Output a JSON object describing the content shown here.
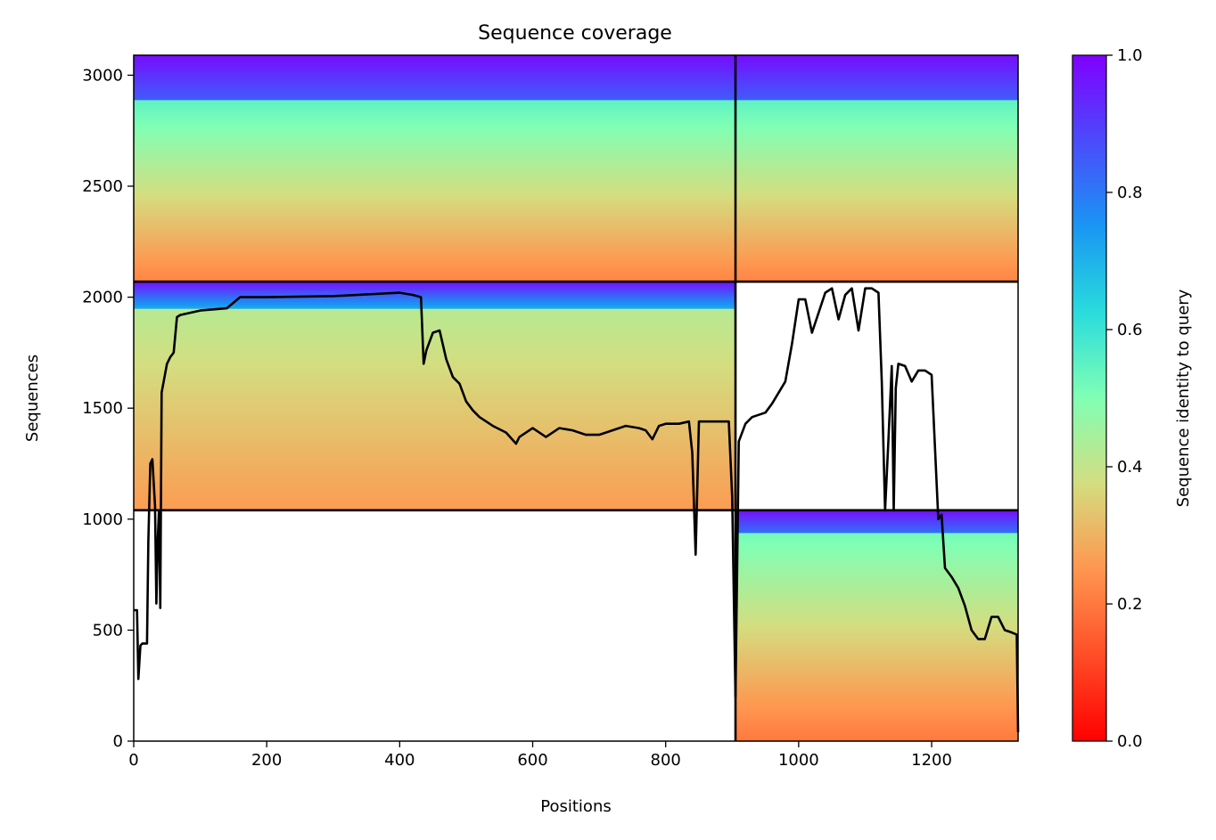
{
  "chart_data": {
    "type": "heatmap",
    "title": "Sequence coverage",
    "xlabel": "Positions",
    "ylabel": "Sequences",
    "xlim": [
      0,
      1330
    ],
    "ylim": [
      0,
      3090
    ],
    "xticks": [
      0,
      200,
      400,
      600,
      800,
      1000,
      1200
    ],
    "yticks": [
      0,
      500,
      1000,
      1500,
      2000,
      2500,
      3000
    ],
    "colorbar": {
      "label": "Sequence identity to query",
      "colormap": "rainbow",
      "range": [
        0.0,
        1.0
      ],
      "ticks": [
        "0.0",
        "0.2",
        "0.4",
        "0.6",
        "0.8",
        "1.0"
      ]
    },
    "segment_boundaries_x": [
      905
    ],
    "block_boundaries_y": [
      1040,
      2070
    ],
    "blocks": [
      {
        "rows": [
          0,
          1040
        ],
        "x_extent": [
          905,
          1330
        ],
        "identity_bottom": 0.2,
        "identity_top": 0.98,
        "band_switch_row": 940,
        "high_identity": 0.82
      },
      {
        "rows": [
          1040,
          2070
        ],
        "x_extent": [
          0,
          905
        ],
        "identity_bottom": 0.26,
        "identity_top": 0.98,
        "band_switch_row": 1950,
        "high_identity": 0.72
      },
      {
        "rows": [
          2070,
          3090
        ],
        "x_extent": [
          0,
          1330
        ],
        "identity_bottom": 0.22,
        "identity_top": 0.98,
        "band_switch_row": 2890,
        "high_identity": 0.85
      }
    ],
    "coverage_line": {
      "x": [
        0,
        5,
        7,
        10,
        13,
        20,
        22,
        25,
        28,
        32,
        34,
        36,
        38,
        40,
        42,
        45,
        50,
        55,
        60,
        65,
        70,
        100,
        140,
        160,
        200,
        300,
        400,
        420,
        432,
        436,
        440,
        450,
        460,
        470,
        480,
        490,
        500,
        510,
        520,
        540,
        560,
        575,
        580,
        600,
        620,
        640,
        660,
        680,
        700,
        720,
        740,
        760,
        770,
        780,
        790,
        800,
        820,
        835,
        840,
        845,
        850,
        860,
        895,
        900,
        905,
        910,
        920,
        930,
        950,
        960,
        980,
        990,
        1000,
        1010,
        1020,
        1040,
        1050,
        1060,
        1070,
        1080,
        1090,
        1100,
        1110,
        1120,
        1125,
        1130,
        1135,
        1140,
        1143,
        1146,
        1150,
        1160,
        1170,
        1180,
        1190,
        1200,
        1210,
        1215,
        1220,
        1230,
        1240,
        1250,
        1260,
        1270,
        1280,
        1290,
        1300,
        1310,
        1320,
        1328,
        1330
      ],
      "y": [
        590,
        590,
        280,
        430,
        440,
        440,
        900,
        1250,
        1270,
        1060,
        620,
        900,
        1040,
        600,
        1570,
        1620,
        1700,
        1730,
        1750,
        1910,
        1920,
        1940,
        1950,
        2000,
        2000,
        2005,
        2020,
        2010,
        2000,
        1700,
        1760,
        1840,
        1850,
        1720,
        1640,
        1610,
        1530,
        1490,
        1460,
        1420,
        1390,
        1340,
        1370,
        1410,
        1370,
        1410,
        1400,
        1380,
        1380,
        1400,
        1420,
        1410,
        1400,
        1360,
        1420,
        1430,
        1430,
        1440,
        1300,
        840,
        1440,
        1440,
        1440,
        1100,
        200,
        1350,
        1430,
        1460,
        1480,
        1520,
        1620,
        1790,
        1990,
        1990,
        1840,
        2020,
        2040,
        1900,
        2010,
        2040,
        1850,
        2040,
        2040,
        2020,
        1620,
        1040,
        1360,
        1690,
        1040,
        1590,
        1700,
        1690,
        1620,
        1670,
        1670,
        1650,
        1000,
        1020,
        780,
        740,
        690,
        610,
        500,
        460,
        460,
        560,
        560,
        500,
        490,
        480,
        40,
        40
      ]
    }
  }
}
